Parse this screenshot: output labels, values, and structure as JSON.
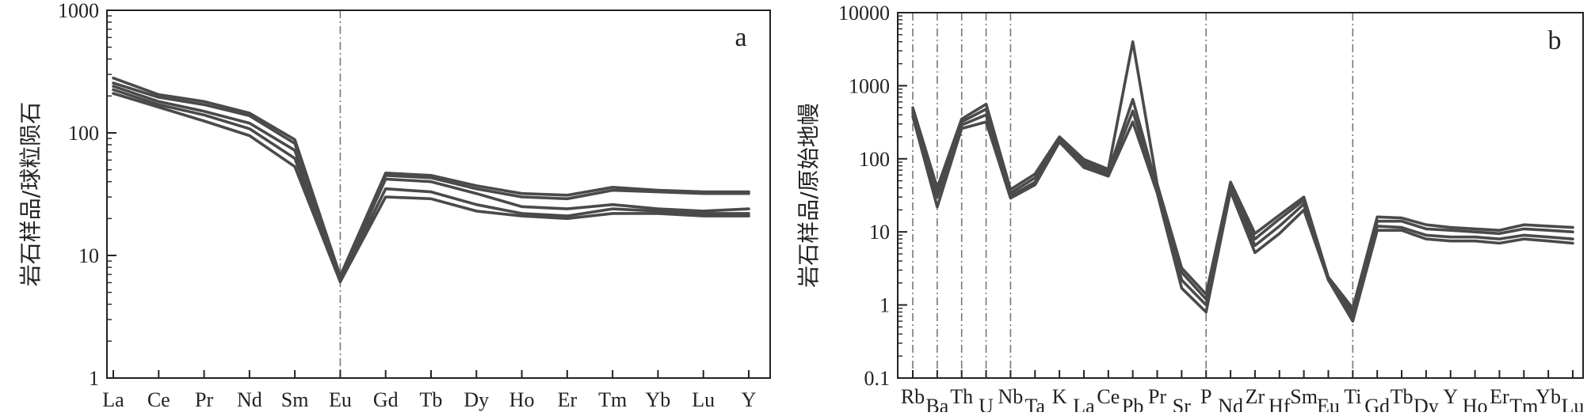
{
  "chart_data": [
    {
      "type": "line",
      "panel_label": "a",
      "ylabel": "岩石样品/球粒陨石",
      "y_scale": "log",
      "ylim": [
        1,
        1000
      ],
      "yticks": [
        1,
        10,
        100,
        1000
      ],
      "ytick_labels": [
        "1",
        "10",
        "100",
        "1000"
      ],
      "categories": [
        "La",
        "Ce",
        "Pr",
        "Nd",
        "Sm",
        "Eu",
        "Gd",
        "Tb",
        "Dy",
        "Ho",
        "Er",
        "Tm",
        "Yb",
        "Lu",
        "Y"
      ],
      "reference_lines_at": [
        "Eu"
      ],
      "series_color": "#4a4a4a",
      "reference_line_color": "#777777",
      "series": [
        {
          "values": [
            280,
            205,
            180,
            145,
            88,
            6.8,
            47,
            45,
            37,
            32,
            31,
            36,
            34,
            33,
            33
          ]
        },
        {
          "values": [
            255,
            195,
            170,
            138,
            82,
            6.5,
            45,
            43,
            35,
            30,
            29,
            34,
            33,
            32,
            32
          ]
        },
        {
          "values": [
            240,
            180,
            150,
            120,
            72,
            6.3,
            42,
            40,
            32,
            25,
            24,
            26,
            24,
            23,
            24
          ]
        },
        {
          "values": [
            225,
            170,
            140,
            108,
            62,
            6.2,
            35,
            33,
            26,
            22,
            21,
            24,
            23,
            22,
            22
          ]
        },
        {
          "values": [
            210,
            162,
            125,
            95,
            53,
            6.1,
            30,
            29,
            23,
            21,
            20,
            22,
            22,
            21,
            21
          ]
        }
      ]
    },
    {
      "type": "line",
      "panel_label": "b",
      "ylabel": "岩石样品/原始地幔",
      "y_scale": "log",
      "ylim": [
        0.1,
        10000
      ],
      "yticks": [
        0.1,
        1,
        10,
        100,
        1000,
        10000
      ],
      "ytick_labels": [
        "0.1",
        "1",
        "10",
        "100",
        "1000",
        "10000"
      ],
      "categories": [
        "Rb",
        "Ba",
        "Th",
        "U",
        "Nb",
        "Ta",
        "K",
        "La",
        "Ce",
        "Pb",
        "Pr",
        "Sr",
        "P",
        "Nd",
        "Zr",
        "Hf",
        "Sm",
        "Eu",
        "Ti",
        "Gd",
        "Tb",
        "Dy",
        "Y",
        "Ho",
        "Er",
        "Tm",
        "Yb",
        "Lu"
      ],
      "reference_lines_at": [
        "Rb",
        "Ba",
        "Th",
        "U",
        "Nb",
        "P",
        "Ti"
      ],
      "series_color": "#4a4a4a",
      "reference_line_color": "#777777",
      "series": [
        {
          "values": [
            500,
            40,
            350,
            560,
            38,
            62,
            200,
            98,
            72,
            4000,
            45,
            3.2,
            1.4,
            48,
            9.5,
            17,
            30,
            2.4,
            0.9,
            16,
            15.5,
            12.5,
            11.5,
            11,
            10.5,
            12.5,
            12,
            11.5
          ]
        },
        {
          "values": [
            460,
            35,
            320,
            480,
            34,
            55,
            190,
            90,
            66,
            650,
            40,
            2.8,
            1.2,
            44,
            8,
            15,
            27,
            2.3,
            0.8,
            14,
            14,
            11,
            10.5,
            10,
            9.5,
            11,
            10.5,
            10
          ]
        },
        {
          "values": [
            420,
            30,
            290,
            400,
            31,
            48,
            180,
            82,
            62,
            450,
            37,
            2.2,
            1.0,
            40,
            6.5,
            12,
            24,
            2.2,
            0.7,
            12,
            11.5,
            9,
            8.5,
            8.5,
            8,
            9,
            8.5,
            8
          ]
        },
        {
          "values": [
            380,
            22,
            260,
            320,
            29,
            44,
            170,
            76,
            58,
            320,
            34,
            1.7,
            0.8,
            36,
            5.2,
            9.5,
            20,
            2.2,
            0.6,
            10.5,
            10.5,
            8,
            7.5,
            7.5,
            7,
            8,
            7.5,
            7
          ]
        }
      ]
    }
  ]
}
